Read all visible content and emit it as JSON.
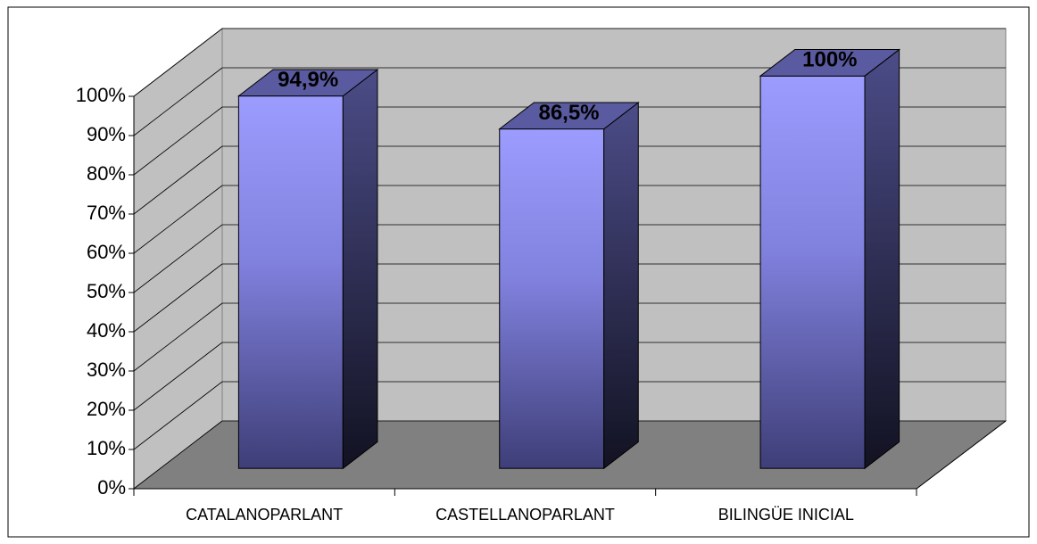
{
  "chart_data": {
    "type": "bar3d",
    "categories": [
      "CATALANOPARLANT",
      "CASTELLANOPARLANT",
      "BILINGÜE INICIAL"
    ],
    "values": [
      94.9,
      86.5,
      100
    ],
    "value_labels": [
      "94,9%",
      "86,5%",
      "100%"
    ],
    "color": "#9999ff",
    "ylim": [
      0,
      100
    ],
    "yticks": [
      {
        "value": 0,
        "label": "0%"
      },
      {
        "value": 10,
        "label": "10%"
      },
      {
        "value": 20,
        "label": "20%"
      },
      {
        "value": 30,
        "label": "30%"
      },
      {
        "value": 40,
        "label": "40%"
      },
      {
        "value": 50,
        "label": "50%"
      },
      {
        "value": 60,
        "label": "60%"
      },
      {
        "value": 70,
        "label": "70%"
      },
      {
        "value": 80,
        "label": "80%"
      },
      {
        "value": 90,
        "label": "90%"
      },
      {
        "value": 100,
        "label": "100%"
      }
    ],
    "grid": true
  }
}
